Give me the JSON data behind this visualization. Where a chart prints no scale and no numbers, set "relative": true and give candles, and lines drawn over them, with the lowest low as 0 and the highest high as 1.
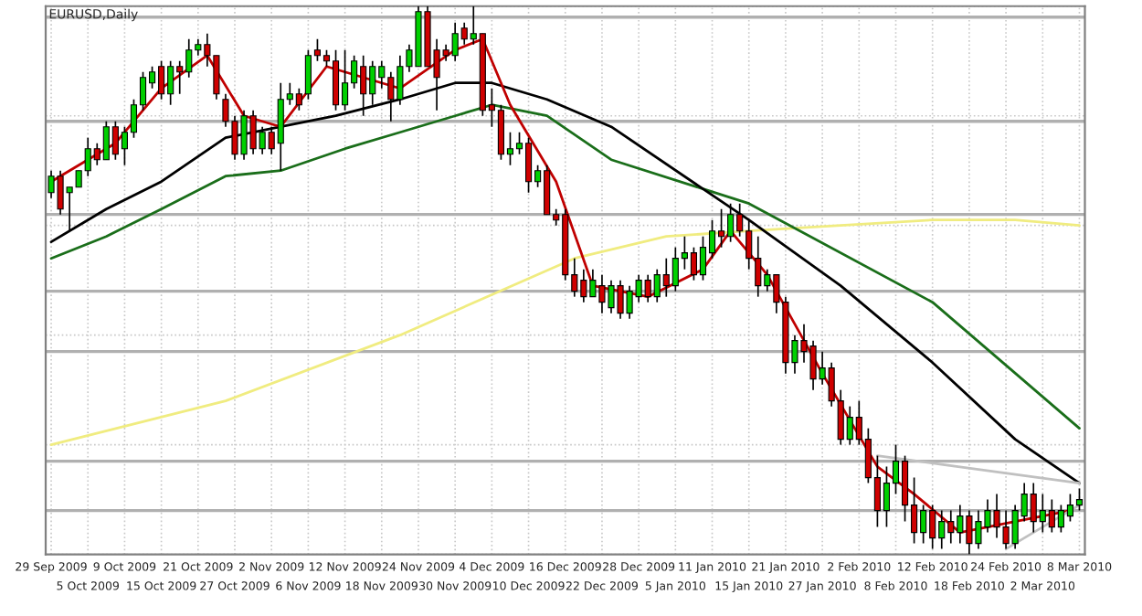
{
  "chart_data": {
    "type": "candlestick",
    "title": "EURUSD,Daily",
    "relative": true,
    "grid": true,
    "colors": [
      "#00d000",
      "#d00000",
      "#00d000",
      "#00d000",
      "#00d000",
      "#d00000",
      "#00d000",
      "#d00000",
      "#00d000",
      "#00d000",
      "#00d000",
      "#00d000",
      "#d00000",
      "#00d000",
      "#d00000",
      "#00d000",
      "#00d000",
      "#d00000",
      "#d00000",
      "#d00000",
      "#d00000",
      "#00d000",
      "#d00000",
      "#00d000",
      "#d00000",
      "#00d000",
      "#00d000",
      "#d00000",
      "#00d000",
      "#d00000",
      "#d00000",
      "#d00000",
      "#00d000",
      "#00d000",
      "#d00000",
      "#00d000",
      "#00d000",
      "#d00000",
      "#00d000",
      "#00d000",
      "#00d000",
      "#d00000",
      "#d00000",
      "#d00000",
      "#00d000",
      "#d00000",
      "#00d000",
      "#d00000",
      "#d00000",
      "#d00000",
      "#00d000",
      "#00d000",
      "#d00000",
      "#00d000",
      "#d00000",
      "#d00000",
      "#d00000",
      "#d00000",
      "#d00000",
      "#00d000",
      "#d00000",
      "#00d000",
      "#d00000",
      "#00d000",
      "#00d000",
      "#d00000",
      "#00d000",
      "#d00000",
      "#00d000",
      "#00d000",
      "#d00000",
      "#00d000",
      "#00d000",
      "#d00000",
      "#00d000",
      "#d00000",
      "#d00000",
      "#d00000",
      "#00d000",
      "#d00000",
      "#d00000",
      "#00d000",
      "#d00000",
      "#d00000",
      "#00d000",
      "#d00000",
      "#d00000",
      "#00d000",
      "#d00000",
      "#d00000",
      "#d00000",
      "#00d000",
      "#00d000",
      "#d00000",
      "#d00000",
      "#00d000",
      "#d00000",
      "#00d000",
      "#d00000",
      "#00d000",
      "#d00000",
      "#00d000",
      "#00d000",
      "#d00000",
      "#d00000",
      "#00d000",
      "#00d000",
      "#d00000",
      "#00d000",
      "#d00000",
      "#00d000",
      "#00d000",
      "#00d000"
    ],
    "categories": [
      "29 Sep 2009",
      null,
      null,
      null,
      "5 Oct 2009",
      null,
      null,
      null,
      "9 Oct 2009",
      null,
      null,
      null,
      "15 Oct 2009",
      null,
      null,
      null,
      "21 Oct 2009",
      null,
      null,
      null,
      "27 Oct 2009",
      null,
      null,
      null,
      "2 Nov 2009",
      null,
      null,
      null,
      "6 Nov 2009",
      null,
      null,
      null,
      "12 Nov 2009",
      null,
      null,
      null,
      "18 Nov 2009",
      null,
      null,
      null,
      "24 Nov 2009",
      null,
      null,
      null,
      "30 Nov 2009",
      null,
      null,
      null,
      "4 Dec 2009",
      null,
      null,
      null,
      "10 Dec 2009",
      null,
      null,
      null,
      "16 Dec 2009",
      null,
      null,
      null,
      "22 Dec 2009",
      null,
      null,
      null,
      "28 Dec 2009",
      null,
      null,
      null,
      "5 Jan 2010",
      null,
      null,
      null,
      "11 Jan 2010",
      null,
      null,
      null,
      "15 Jan 2010",
      null,
      null,
      null,
      "21 Jan 2010",
      null,
      null,
      null,
      "27 Jan 2010",
      null,
      null,
      null,
      "2 Feb 2010",
      null,
      null,
      null,
      "8 Feb 2010",
      null,
      null,
      null,
      "12 Feb 2010",
      null,
      null,
      null,
      "18 Feb 2010",
      null,
      null,
      null,
      "24 Feb 2010",
      null,
      null,
      null,
      "2 Mar 2010",
      null,
      null,
      null,
      "8 Mar 2010"
    ],
    "ohlc": [
      [
        0.66,
        0.7,
        0.65,
        0.69
      ],
      [
        0.69,
        0.7,
        0.62,
        0.63
      ],
      [
        0.66,
        0.67,
        0.59,
        0.67
      ],
      [
        0.67,
        0.7,
        0.67,
        0.7
      ],
      [
        0.7,
        0.76,
        0.69,
        0.74
      ],
      [
        0.74,
        0.75,
        0.71,
        0.72
      ],
      [
        0.72,
        0.79,
        0.72,
        0.78
      ],
      [
        0.78,
        0.79,
        0.72,
        0.73
      ],
      [
        0.74,
        0.78,
        0.71,
        0.77
      ],
      [
        0.77,
        0.83,
        0.76,
        0.82
      ],
      [
        0.82,
        0.88,
        0.81,
        0.87
      ],
      [
        0.86,
        0.89,
        0.85,
        0.88
      ],
      [
        0.89,
        0.9,
        0.83,
        0.84
      ],
      [
        0.84,
        0.9,
        0.82,
        0.89
      ],
      [
        0.89,
        0.9,
        0.84,
        0.88
      ],
      [
        0.88,
        0.94,
        0.87,
        0.92
      ],
      [
        0.92,
        0.94,
        0.91,
        0.93
      ],
      [
        0.93,
        0.95,
        0.89,
        0.91
      ],
      [
        0.91,
        0.91,
        0.83,
        0.84
      ],
      [
        0.83,
        0.84,
        0.78,
        0.79
      ],
      [
        0.79,
        0.8,
        0.72,
        0.73
      ],
      [
        0.73,
        0.81,
        0.72,
        0.8
      ],
      [
        0.8,
        0.81,
        0.73,
        0.74
      ],
      [
        0.74,
        0.78,
        0.73,
        0.77
      ],
      [
        0.77,
        0.78,
        0.73,
        0.74
      ],
      [
        0.75,
        0.86,
        0.7,
        0.83
      ],
      [
        0.83,
        0.86,
        0.82,
        0.84
      ],
      [
        0.84,
        0.85,
        0.81,
        0.82
      ],
      [
        0.84,
        0.92,
        0.83,
        0.91
      ],
      [
        0.92,
        0.94,
        0.9,
        0.91
      ],
      [
        0.91,
        0.92,
        0.89,
        0.9
      ],
      [
        0.9,
        0.92,
        0.81,
        0.82
      ],
      [
        0.82,
        0.92,
        0.81,
        0.86
      ],
      [
        0.86,
        0.91,
        0.85,
        0.9
      ],
      [
        0.89,
        0.91,
        0.8,
        0.84
      ],
      [
        0.84,
        0.9,
        0.82,
        0.89
      ],
      [
        0.87,
        0.9,
        0.85,
        0.89
      ],
      [
        0.87,
        0.88,
        0.79,
        0.83
      ],
      [
        0.83,
        0.91,
        0.82,
        0.89
      ],
      [
        0.89,
        0.93,
        0.88,
        0.92
      ],
      [
        0.89,
        1.0,
        0.89,
        0.99
      ],
      [
        0.99,
        1.0,
        0.89,
        0.89
      ],
      [
        0.92,
        0.94,
        0.81,
        0.87
      ],
      [
        0.92,
        0.93,
        0.9,
        0.91
      ],
      [
        0.91,
        0.97,
        0.9,
        0.95
      ],
      [
        0.96,
        0.97,
        0.93,
        0.94
      ],
      [
        0.94,
        1.0,
        0.93,
        0.95
      ],
      [
        0.95,
        0.95,
        0.8,
        0.81
      ],
      [
        0.82,
        0.85,
        0.78,
        0.81
      ],
      [
        0.81,
        0.82,
        0.72,
        0.73
      ],
      [
        0.73,
        0.77,
        0.71,
        0.74
      ],
      [
        0.74,
        0.77,
        0.73,
        0.75
      ],
      [
        0.75,
        0.76,
        0.66,
        0.68
      ],
      [
        0.68,
        0.71,
        0.67,
        0.7
      ],
      [
        0.7,
        0.71,
        0.62,
        0.62
      ],
      [
        0.62,
        0.63,
        0.6,
        0.61
      ],
      [
        0.62,
        0.63,
        0.5,
        0.51
      ],
      [
        0.51,
        0.54,
        0.47,
        0.48
      ],
      [
        0.5,
        0.52,
        0.46,
        0.47
      ],
      [
        0.47,
        0.52,
        0.47,
        0.5
      ],
      [
        0.49,
        0.51,
        0.44,
        0.46
      ],
      [
        0.45,
        0.5,
        0.44,
        0.49
      ],
      [
        0.49,
        0.5,
        0.43,
        0.44
      ],
      [
        0.44,
        0.49,
        0.43,
        0.48
      ],
      [
        0.47,
        0.51,
        0.46,
        0.5
      ],
      [
        0.5,
        0.51,
        0.46,
        0.47
      ],
      [
        0.47,
        0.52,
        0.46,
        0.51
      ],
      [
        0.51,
        0.54,
        0.47,
        0.49
      ],
      [
        0.49,
        0.56,
        0.48,
        0.54
      ],
      [
        0.54,
        0.58,
        0.52,
        0.55
      ],
      [
        0.55,
        0.56,
        0.5,
        0.51
      ],
      [
        0.51,
        0.58,
        0.5,
        0.56
      ],
      [
        0.55,
        0.61,
        0.54,
        0.59
      ],
      [
        0.59,
        0.63,
        0.56,
        0.58
      ],
      [
        0.58,
        0.64,
        0.57,
        0.62
      ],
      [
        0.62,
        0.64,
        0.58,
        0.59
      ],
      [
        0.59,
        0.61,
        0.52,
        0.54
      ],
      [
        0.54,
        0.58,
        0.47,
        0.49
      ],
      [
        0.49,
        0.52,
        0.48,
        0.51
      ],
      [
        0.51,
        0.51,
        0.44,
        0.46
      ],
      [
        0.46,
        0.47,
        0.33,
        0.35
      ],
      [
        0.35,
        0.4,
        0.33,
        0.39
      ],
      [
        0.39,
        0.42,
        0.35,
        0.37
      ],
      [
        0.38,
        0.39,
        0.3,
        0.32
      ],
      [
        0.32,
        0.37,
        0.31,
        0.34
      ],
      [
        0.34,
        0.35,
        0.27,
        0.28
      ],
      [
        0.28,
        0.3,
        0.2,
        0.21
      ],
      [
        0.21,
        0.27,
        0.2,
        0.25
      ],
      [
        0.25,
        0.28,
        0.2,
        0.21
      ],
      [
        0.21,
        0.23,
        0.13,
        0.14
      ],
      [
        0.14,
        0.18,
        0.05,
        0.08
      ],
      [
        0.08,
        0.16,
        0.05,
        0.13
      ],
      [
        0.13,
        0.2,
        0.11,
        0.17
      ],
      [
        0.17,
        0.18,
        0.06,
        0.09
      ],
      [
        0.09,
        0.14,
        0.02,
        0.04
      ],
      [
        0.04,
        0.09,
        0.02,
        0.08
      ],
      [
        0.08,
        0.09,
        0.01,
        0.03
      ],
      [
        0.03,
        0.08,
        0.01,
        0.06
      ],
      [
        0.06,
        0.08,
        0.02,
        0.04
      ],
      [
        0.04,
        0.09,
        0.02,
        0.07
      ],
      [
        0.07,
        0.08,
        0.0,
        0.02
      ],
      [
        0.02,
        0.08,
        0.01,
        0.06
      ],
      [
        0.05,
        0.1,
        0.04,
        0.08
      ],
      [
        0.08,
        0.11,
        0.03,
        0.05
      ],
      [
        0.05,
        0.08,
        0.01,
        0.02
      ],
      [
        0.02,
        0.09,
        0.01,
        0.08
      ],
      [
        0.07,
        0.13,
        0.06,
        0.11
      ],
      [
        0.11,
        0.13,
        0.04,
        0.06
      ],
      [
        0.06,
        0.11,
        0.04,
        0.08
      ],
      [
        0.08,
        0.1,
        0.04,
        0.05
      ],
      [
        0.05,
        0.09,
        0.04,
        0.08
      ],
      [
        0.07,
        0.11,
        0.06,
        0.09
      ],
      [
        0.09,
        0.12,
        0.08,
        0.1
      ]
    ],
    "series": [
      {
        "type": "line",
        "color": "#f0ec80",
        "values": [
          0.2,
          null,
          null,
          null,
          null,
          null,
          null,
          null,
          null,
          null,
          null,
          null,
          null,
          null,
          null,
          null,
          null,
          null,
          null,
          0.28,
          null,
          null,
          null,
          null,
          null,
          null,
          null,
          null,
          null,
          null,
          null,
          null,
          null,
          null,
          null,
          null,
          null,
          null,
          0.4,
          null,
          null,
          null,
          null,
          null,
          null,
          null,
          null,
          null,
          null,
          null,
          null,
          null,
          null,
          null,
          null,
          null,
          null,
          0.54,
          null,
          null,
          null,
          null,
          null,
          null,
          null,
          null,
          null,
          0.58,
          null,
          null,
          null,
          null,
          null,
          null,
          null,
          null,
          0.59,
          null,
          null,
          null,
          null,
          null,
          null,
          null,
          null,
          null,
          0.6,
          null,
          null,
          null,
          null,
          null,
          null,
          null,
          null,
          null,
          0.61,
          null,
          null,
          null,
          null,
          null,
          null,
          null,
          null,
          0.61,
          null,
          null,
          null,
          null,
          null,
          null,
          0.6
        ]
      },
      {
        "type": "line",
        "color": "#1a6e1a",
        "values": [
          0.54,
          null,
          null,
          null,
          null,
          null,
          0.58,
          null,
          null,
          null,
          null,
          null,
          0.63,
          null,
          null,
          null,
          null,
          null,
          null,
          0.69,
          null,
          null,
          null,
          null,
          null,
          0.7,
          null,
          null,
          null,
          null,
          null,
          null,
          0.74,
          null,
          null,
          null,
          null,
          null,
          0.77,
          null,
          null,
          null,
          null,
          null,
          0.8,
          null,
          null,
          null,
          0.82,
          null,
          null,
          null,
          null,
          null,
          0.8,
          null,
          null,
          null,
          null,
          null,
          null,
          0.72,
          null,
          null,
          null,
          null,
          null,
          null,
          null,
          null,
          null,
          null,
          null,
          null,
          null,
          null,
          0.64,
          null,
          null,
          null,
          null,
          null,
          null,
          null,
          null,
          null,
          null,
          null,
          null,
          null,
          null,
          null,
          null,
          null,
          null,
          null,
          0.46,
          null,
          null,
          null,
          null,
          null,
          null,
          null,
          null,
          null,
          null,
          null,
          null,
          null,
          null,
          null,
          0.23
        ]
      },
      {
        "type": "line",
        "color": "#000000",
        "values": [
          0.57,
          null,
          null,
          null,
          null,
          null,
          0.63,
          null,
          null,
          null,
          null,
          null,
          0.68,
          null,
          null,
          null,
          null,
          null,
          null,
          0.76,
          null,
          null,
          null,
          null,
          null,
          0.78,
          null,
          null,
          null,
          null,
          null,
          0.8,
          null,
          null,
          null,
          null,
          null,
          null,
          0.83,
          null,
          null,
          null,
          null,
          null,
          0.86,
          null,
          null,
          null,
          0.86,
          null,
          null,
          null,
          null,
          null,
          0.83,
          null,
          null,
          null,
          null,
          null,
          null,
          0.78,
          null,
          null,
          null,
          null,
          null,
          null,
          null,
          null,
          null,
          null,
          null,
          null,
          null,
          null,
          0.61,
          null,
          null,
          null,
          null,
          null,
          null,
          null,
          null,
          null,
          0.49,
          null,
          null,
          null,
          null,
          null,
          null,
          null,
          null,
          null,
          0.35,
          null,
          null,
          null,
          null,
          null,
          null,
          null,
          null,
          0.21,
          null,
          null,
          null,
          null,
          null,
          null,
          0.13
        ]
      },
      {
        "type": "line",
        "color": "#c00000",
        "values": [
          0.68,
          null,
          null,
          null,
          null,
          null,
          null,
          0.75,
          null,
          null,
          null,
          null,
          0.85,
          null,
          null,
          null,
          null,
          0.91,
          null,
          null,
          null,
          0.8,
          null,
          null,
          null,
          0.78,
          null,
          null,
          null,
          null,
          0.89,
          null,
          null,
          null,
          null,
          null,
          null,
          null,
          0.85,
          null,
          null,
          null,
          null,
          null,
          0.92,
          null,
          null,
          0.94,
          null,
          null,
          0.82,
          null,
          null,
          null,
          null,
          0.68,
          null,
          null,
          null,
          0.49,
          null,
          null,
          null,
          null,
          null,
          0.47,
          null,
          null,
          null,
          null,
          null,
          0.52,
          null,
          null,
          0.59,
          null,
          null,
          null,
          0.51,
          null,
          null,
          null,
          null,
          null,
          0.33,
          null,
          null,
          null,
          null,
          null,
          0.16,
          null,
          null,
          null,
          0.11,
          null,
          null,
          null,
          null,
          0.04,
          null,
          null,
          null,
          null,
          null,
          0.06,
          null,
          null,
          null,
          null,
          null,
          0.08,
          null
        ]
      },
      {
        "type": "line",
        "color": "#c0c0c0",
        "values": [
          null,
          null,
          null,
          null,
          null,
          null,
          null,
          null,
          null,
          null,
          null,
          null,
          null,
          null,
          null,
          null,
          null,
          null,
          null,
          null,
          null,
          null,
          null,
          null,
          null,
          null,
          null,
          null,
          null,
          null,
          null,
          null,
          null,
          null,
          null,
          null,
          null,
          null,
          null,
          null,
          null,
          null,
          null,
          null,
          null,
          null,
          null,
          null,
          null,
          null,
          null,
          null,
          null,
          null,
          null,
          null,
          null,
          null,
          null,
          null,
          null,
          null,
          null,
          null,
          null,
          null,
          null,
          null,
          null,
          null,
          null,
          null,
          null,
          null,
          null,
          null,
          null,
          null,
          null,
          null,
          null,
          null,
          null,
          null,
          null,
          null,
          null,
          null,
          null,
          null,
          0.18,
          null,
          null,
          null,
          null,
          null,
          null,
          null,
          null,
          null,
          null,
          null,
          null,
          null,
          null,
          null,
          null,
          null,
          null,
          null,
          null,
          null,
          0.13
        ]
      },
      {
        "type": "line",
        "color": "#c0c0c0",
        "values": [
          null,
          null,
          null,
          null,
          null,
          null,
          null,
          null,
          null,
          null,
          null,
          null,
          null,
          null,
          null,
          null,
          null,
          null,
          null,
          null,
          null,
          null,
          null,
          null,
          null,
          null,
          null,
          null,
          null,
          null,
          null,
          null,
          null,
          null,
          null,
          null,
          null,
          null,
          null,
          null,
          null,
          null,
          null,
          null,
          null,
          null,
          null,
          null,
          null,
          null,
          null,
          null,
          null,
          null,
          null,
          null,
          null,
          null,
          null,
          null,
          null,
          null,
          null,
          null,
          null,
          null,
          null,
          null,
          null,
          null,
          null,
          null,
          null,
          null,
          null,
          null,
          null,
          null,
          null,
          null,
          null,
          null,
          null,
          null,
          null,
          null,
          null,
          null,
          null,
          null,
          null,
          null,
          null,
          null,
          null,
          null,
          null,
          null,
          null,
          null,
          null,
          null,
          null,
          null,
          0.01,
          null,
          null,
          null,
          null,
          null,
          null,
          null,
          0.09
        ]
      }
    ],
    "ref_lines": [
      {
        "axis": "y",
        "value": 0.98,
        "color": "#b0b0b0"
      },
      {
        "axis": "y",
        "value": 0.79,
        "color": "#b0b0b0"
      },
      {
        "axis": "y",
        "value": 0.62,
        "color": "#b0b0b0"
      },
      {
        "axis": "y",
        "value": 0.48,
        "color": "#b0b0b0"
      },
      {
        "axis": "y",
        "value": 0.37,
        "color": "#b0b0b0"
      },
      {
        "axis": "y",
        "value": 0.17,
        "color": "#b0b0b0"
      },
      {
        "axis": "y",
        "value": 0.08,
        "color": "#b0b0b0"
      }
    ]
  }
}
